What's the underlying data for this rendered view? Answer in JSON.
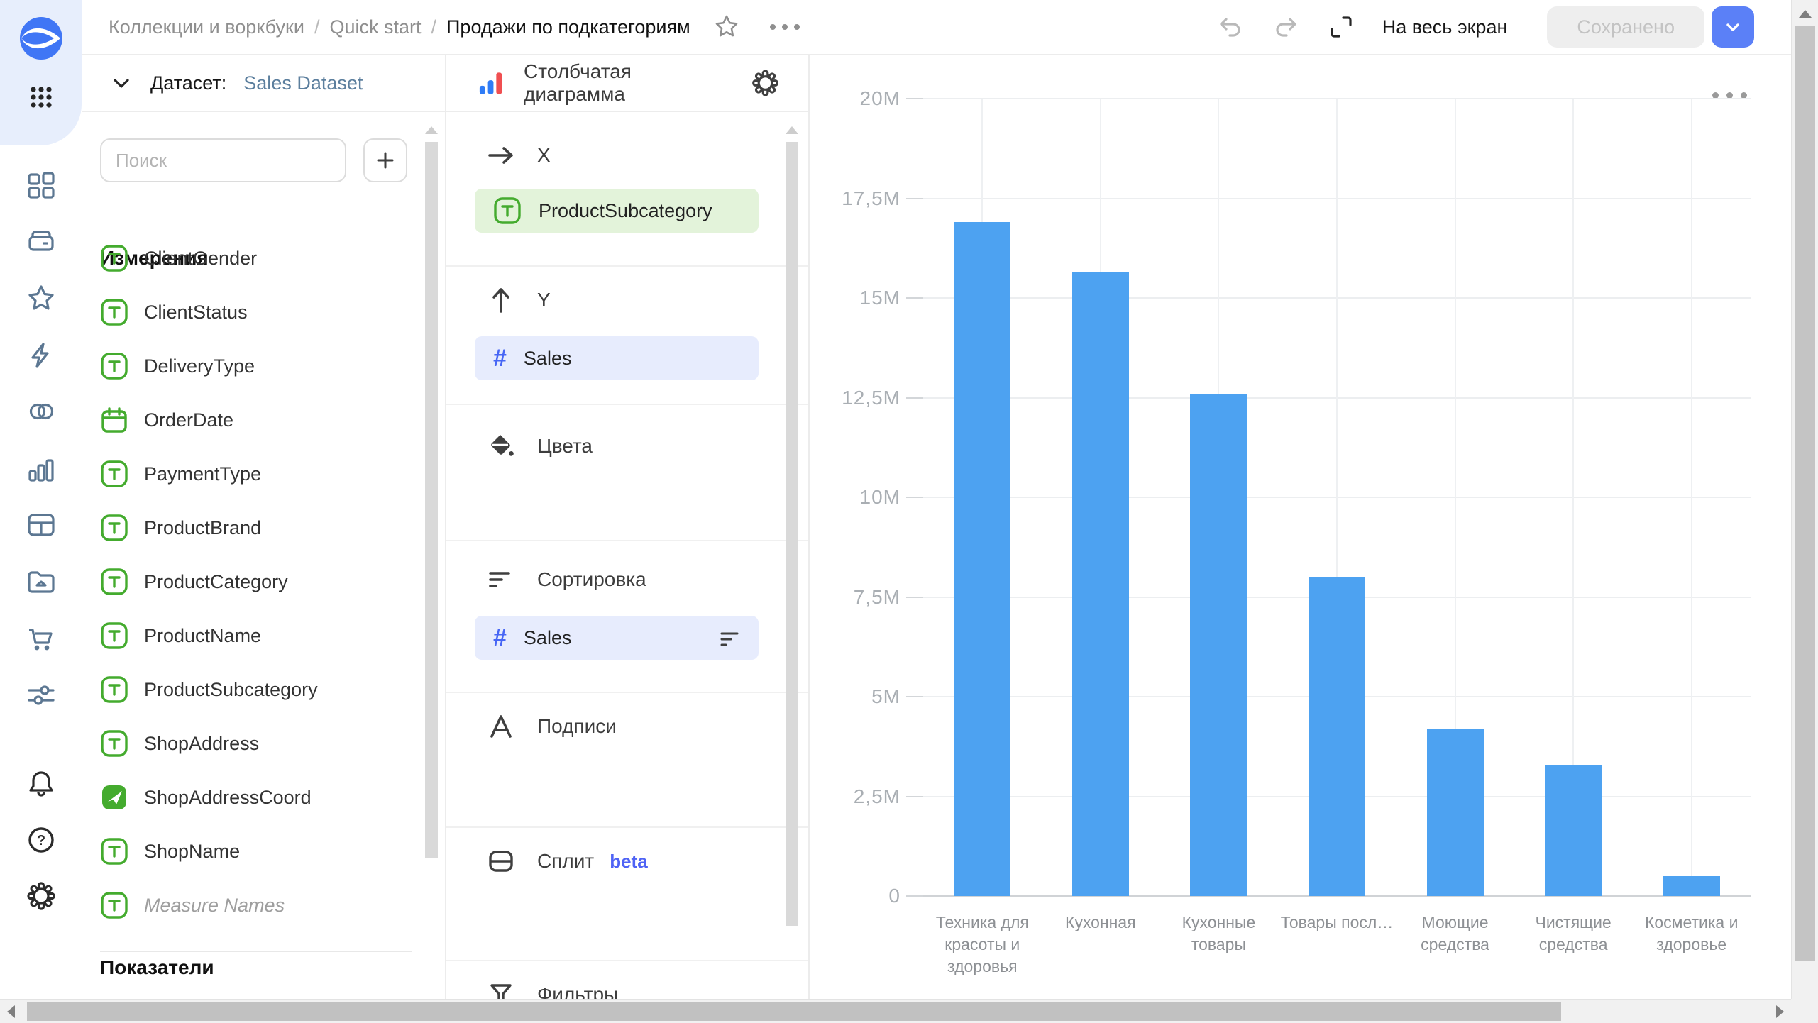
{
  "topbar": {
    "breadcrumb": {
      "items": [
        "Коллекции и воркбуки",
        "Quick start"
      ],
      "current": "Продажи по подкатегориям",
      "separator": "/"
    },
    "actions": {
      "fullscreen_label": "На весь экран",
      "saved_label": "Сохранено"
    }
  },
  "rail": {
    "icons": [
      "datalens-logo",
      "apps-grid",
      "dashboards",
      "collections",
      "favorites",
      "quick-actions",
      "linked-objects",
      "charts",
      "tables",
      "storage",
      "marketplace",
      "services",
      "notifications",
      "help",
      "settings"
    ]
  },
  "dataset_panel": {
    "dataset_label": "Датасет:",
    "dataset_name": "Sales Dataset",
    "search_placeholder": "Поиск",
    "add_button_label": "+",
    "dimensions_title": "Измерения",
    "measures_title": "Показатели",
    "fields": [
      {
        "label": "ClientGender",
        "icon": "text"
      },
      {
        "label": "ClientStatus",
        "icon": "text"
      },
      {
        "label": "DeliveryType",
        "icon": "text"
      },
      {
        "label": "OrderDate",
        "icon": "date"
      },
      {
        "label": "PaymentType",
        "icon": "text"
      },
      {
        "label": "ProductBrand",
        "icon": "text"
      },
      {
        "label": "ProductCategory",
        "icon": "text"
      },
      {
        "label": "ProductName",
        "icon": "text"
      },
      {
        "label": "ProductSubcategory",
        "icon": "text"
      },
      {
        "label": "ShopAddress",
        "icon": "text"
      },
      {
        "label": "ShopAddressCoord",
        "icon": "geo"
      },
      {
        "label": "ShopName",
        "icon": "text"
      },
      {
        "label": "Measure Names",
        "icon": "text",
        "italic": true
      }
    ]
  },
  "config_panel": {
    "chart_type_label": "Столбчатая диаграмма",
    "section_x_label": "X",
    "x_field": "ProductSubcategory",
    "section_y_label": "Y",
    "y_field": "Sales",
    "colors_label": "Цвета",
    "sort_label": "Сортировка",
    "sort_field": "Sales",
    "labels_label": "Подписи",
    "split_label": "Сплит",
    "split_badge": "beta",
    "filters_label": "Фильтры"
  },
  "chart_data": {
    "type": "bar",
    "title": "Продажи по подкатегориям",
    "series_name": "Sales",
    "categories": [
      "Техника для красоты и здоровья",
      "Кухонная",
      "Кухонные товары",
      "Товары посл…",
      "Моющие средства",
      "Чистящие средства",
      "Косметика и здоровье"
    ],
    "values": [
      16900000,
      15650000,
      12600000,
      8000000,
      4200000,
      3300000,
      500000
    ],
    "xlabel": "ProductSubcategory",
    "ylabel": "Sales",
    "ylim": [
      0,
      20000000
    ],
    "y_ticks": [
      "20M",
      "17,5M",
      "15M",
      "12,5M",
      "10M",
      "7,5M",
      "5M",
      "2,5M",
      "0"
    ],
    "grid": true,
    "legend": false,
    "bar_color": "#4da2f1"
  }
}
